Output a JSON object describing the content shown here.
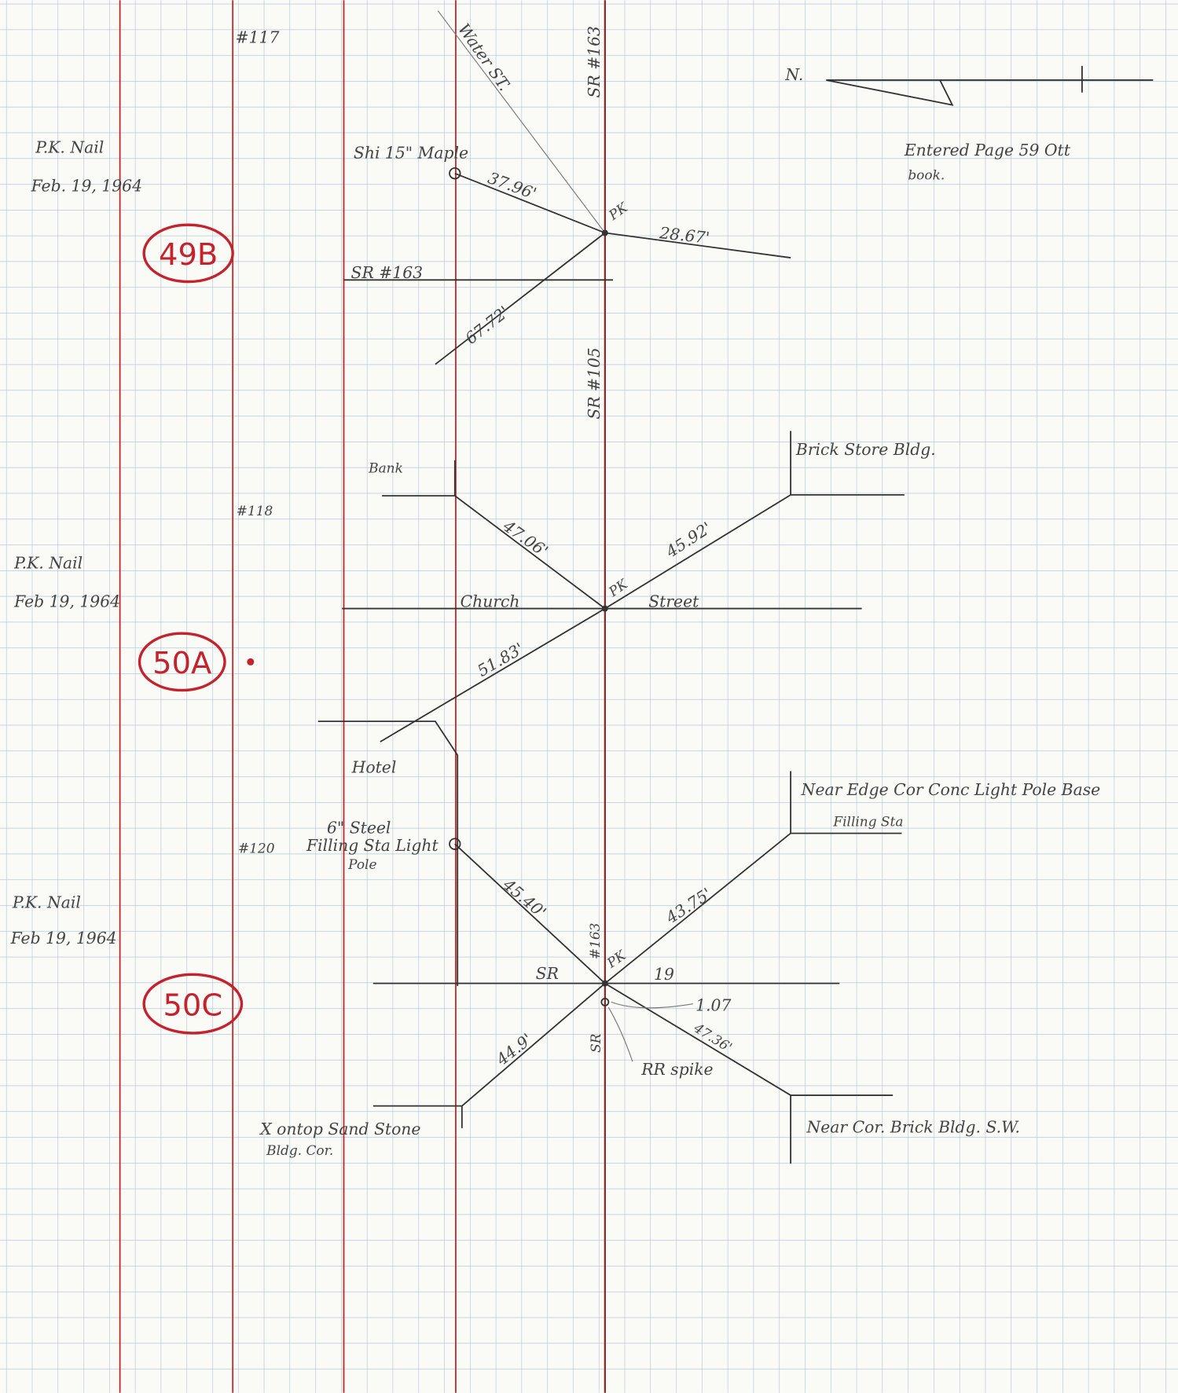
{
  "header": {
    "north": "N.",
    "entered": "Entered Page 59 Ott",
    "entered_book": "book."
  },
  "stations": [
    {
      "id": "49B",
      "note": "P.K. Nail",
      "date": "Feb. 19, 1964",
      "number": "#117",
      "sketch": [
        "Water ST.",
        "SR #163",
        "Shi 15\" Maple",
        "37.96'",
        "PK",
        "28.67'",
        "SR #163",
        "67.72'",
        "SR #105"
      ]
    },
    {
      "id": "50A",
      "note": "P.K. Nail",
      "date": "Feb 19, 1964",
      "number": "#118",
      "sketch": [
        "Brick Store Bldg.",
        "Bank",
        "47.06'",
        "45.92'",
        "Church",
        "PK",
        "Street",
        "51.83'",
        "Hotel"
      ]
    },
    {
      "id": "50C",
      "note": "P.K. Nail",
      "date": "Feb 19, 1964",
      "number": "#120",
      "sketch": [
        "Near Edge Cor Conc Light Pole Base",
        "Filling Sta",
        "6\" Steel",
        "Filling Sta Light",
        "Pole",
        "45.40'",
        "#163",
        "SR",
        "PK",
        "19",
        "43.75'",
        "1.07",
        "47.36'",
        "SR",
        "44.9'",
        "RR spike",
        "X ontop Sand Stone",
        "Bldg. Cor.",
        "Near Cor. Brick Bldg. S.W."
      ]
    }
  ]
}
